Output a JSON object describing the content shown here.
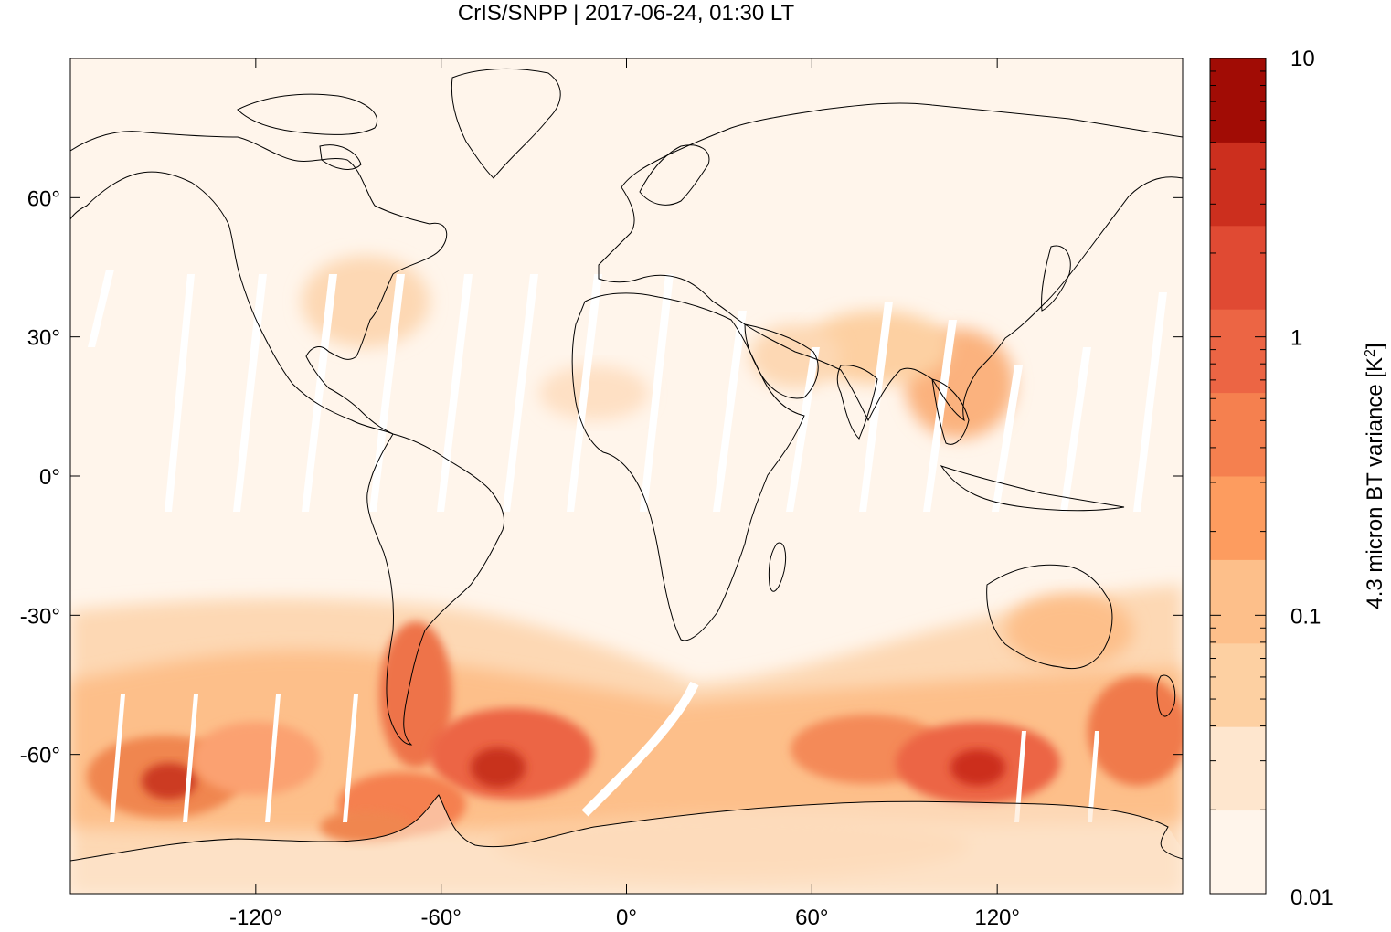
{
  "title": "CrIS/SNPP | 2017-06-24, 01:30 LT",
  "map": {
    "lon_range": [
      -180,
      180
    ],
    "lat_range": [
      -90,
      90
    ],
    "x_ticks": [
      {
        "value": -120,
        "label": "-120°"
      },
      {
        "value": -60,
        "label": "-60°"
      },
      {
        "value": 0,
        "label": "0°"
      },
      {
        "value": 60,
        "label": "60°"
      },
      {
        "value": 120,
        "label": "120°"
      }
    ],
    "y_ticks": [
      {
        "value": 60,
        "label": "60°"
      },
      {
        "value": 30,
        "label": "30°"
      },
      {
        "value": 0,
        "label": "0°"
      },
      {
        "value": -30,
        "label": "-30°"
      },
      {
        "value": -60,
        "label": "-60°"
      }
    ]
  },
  "colorbar": {
    "label_main": "4.3 micron BT variance [K",
    "label_sup": "2",
    "label_end": "]",
    "scale": "log",
    "range": [
      0.01,
      10
    ],
    "ticks": [
      {
        "value": 10,
        "label": "10"
      },
      {
        "value": 1,
        "label": "1"
      },
      {
        "value": 0.1,
        "label": "0.1"
      },
      {
        "value": 0.01,
        "label": "0.01"
      }
    ],
    "colors": [
      "#fff5eb",
      "#fee6ce",
      "#fdd0a2",
      "#fdbf8a",
      "#fd9c5f",
      "#f5804f",
      "#ec6544",
      "#e04a33",
      "#cc2f1e",
      "#a10c05"
    ]
  },
  "chart_data": {
    "type": "heatmap",
    "title": "CrIS/SNPP | 2017-06-24, 01:30 LT",
    "xlabel": "",
    "ylabel": "",
    "xlim": [
      -180,
      180
    ],
    "ylim": [
      -90,
      90
    ],
    "zlabel": "4.3 micron BT variance [K^2]",
    "zlim": [
      0.01,
      10
    ],
    "zscale": "log",
    "regions": [
      {
        "lon": -140,
        "lat": -62,
        "value": 1.5
      },
      {
        "lon": -100,
        "lat": -62,
        "value": 0.5
      },
      {
        "lon": -70,
        "lat": -50,
        "value": 1.5
      },
      {
        "lon": -45,
        "lat": -58,
        "value": 2.0
      },
      {
        "lon": -30,
        "lat": -48,
        "value": 1.0
      },
      {
        "lon": -60,
        "lat": -75,
        "value": 1.0
      },
      {
        "lon": 30,
        "lat": -62,
        "value": 0.3
      },
      {
        "lon": 80,
        "lat": -60,
        "value": 1.5
      },
      {
        "lon": 110,
        "lat": -60,
        "value": 2.0
      },
      {
        "lon": 150,
        "lat": -55,
        "value": 1.5
      },
      {
        "lon": 145,
        "lat": -38,
        "value": 0.5
      },
      {
        "lon": 100,
        "lat": 20,
        "value": 0.5
      },
      {
        "lon": 40,
        "lat": 20,
        "value": 0.2
      },
      {
        "lon": -80,
        "lat": 35,
        "value": 0.2
      },
      {
        "lon": -20,
        "lat": 15,
        "value": 0.15
      },
      {
        "lon": 0,
        "lat": 0,
        "value": 0.01
      }
    ]
  }
}
